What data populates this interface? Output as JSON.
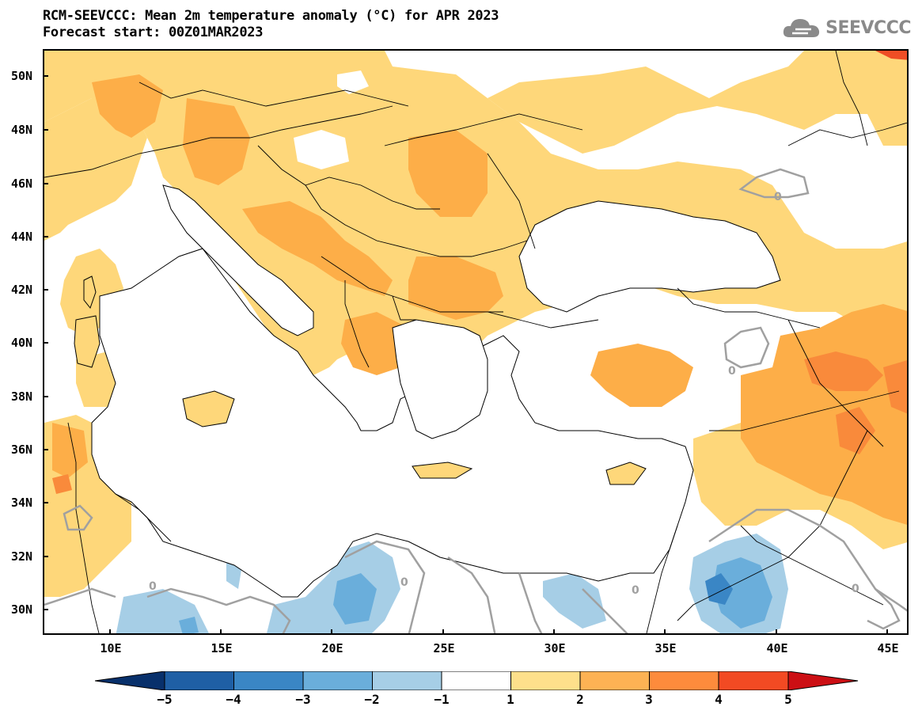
{
  "title": {
    "line1": "RCM-SEEVCCC: Mean 2m temperature anomaly (°C) for APR 2023",
    "line2": "Forecast start: 00Z01MAR2023"
  },
  "logo": {
    "text": "SEEVCCC",
    "icon": "cloud-icon",
    "color": "#8a8a8a"
  },
  "map": {
    "lat_labels": [
      "50N",
      "48N",
      "46N",
      "44N",
      "42N",
      "40N",
      "38N",
      "36N",
      "34N",
      "32N",
      "30N"
    ],
    "lon_labels": [
      "10E",
      "15E",
      "20E",
      "25E",
      "30E",
      "35E",
      "40E",
      "45E"
    ],
    "contour_label": "0"
  },
  "colorbar": {
    "labels": [
      "-5",
      "-4",
      "-3",
      "-2",
      "-1",
      "1",
      "2",
      "3",
      "4",
      "5"
    ],
    "colors": [
      "#08306b",
      "#1f5fa5",
      "#3a86c5",
      "#6aaedb",
      "#a6cee6",
      "#ffffff",
      "#fee08b",
      "#fdb254",
      "#fd8b3c",
      "#f24a23",
      "#cc0f14"
    ]
  },
  "palette": {
    "anom_1_2": "#fed77a",
    "anom_2_3": "#fdae48",
    "anom_3_4": "#f98a3b",
    "anom_4_5": "#ef4d25",
    "anom_neg_1_2": "#a6cee6",
    "anom_neg_2_3": "#6aaedb",
    "anom_neg_3_4": "#3a86c5",
    "contour": "#a0a0a0"
  }
}
